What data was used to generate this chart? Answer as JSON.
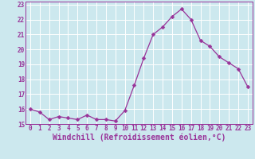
{
  "x": [
    0,
    1,
    2,
    3,
    4,
    5,
    6,
    7,
    8,
    9,
    10,
    11,
    12,
    13,
    14,
    15,
    16,
    17,
    18,
    19,
    20,
    21,
    22,
    23
  ],
  "y": [
    16.0,
    15.8,
    15.3,
    15.5,
    15.4,
    15.3,
    15.6,
    15.3,
    15.3,
    15.2,
    15.9,
    17.6,
    19.4,
    21.0,
    21.5,
    22.2,
    22.7,
    22.0,
    20.6,
    20.2,
    19.5,
    19.1,
    18.7,
    17.5
  ],
  "line_color": "#993399",
  "marker": "D",
  "marker_size": 2.5,
  "bg_color": "#cce8ee",
  "grid_color": "#b0d8e0",
  "xlabel": "Windchill (Refroidissement éolien,°C)",
  "ylabel": "",
  "title": "",
  "xlim": [
    -0.5,
    23.5
  ],
  "ylim": [
    15.0,
    23.2
  ],
  "yticks": [
    15,
    16,
    17,
    18,
    19,
    20,
    21,
    22,
    23
  ],
  "xticks": [
    0,
    1,
    2,
    3,
    4,
    5,
    6,
    7,
    8,
    9,
    10,
    11,
    12,
    13,
    14,
    15,
    16,
    17,
    18,
    19,
    20,
    21,
    22,
    23
  ],
  "tick_color": "#993399",
  "tick_fontsize": 5.5,
  "xlabel_fontsize": 7.0,
  "label_color": "#993399",
  "spine_color": "#993399"
}
